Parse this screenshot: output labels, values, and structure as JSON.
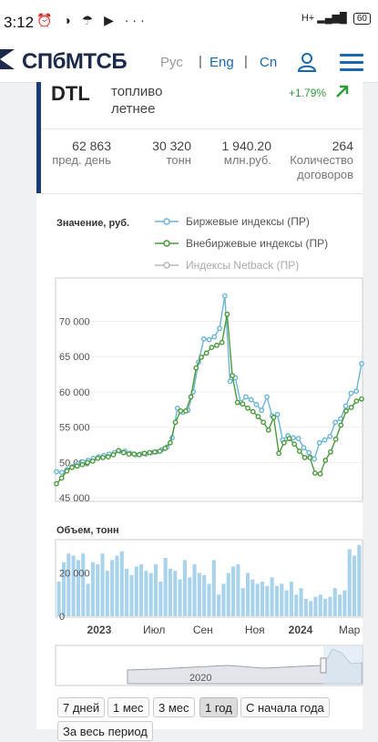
{
  "status": {
    "time": "3:12",
    "network": "H+",
    "battery": "60"
  },
  "header": {
    "logo": "СПбМТСБ",
    "langs": [
      "Рус",
      "Eng",
      "Cn"
    ],
    "sep": "|"
  },
  "instrument": {
    "ticker": "DTL",
    "product": "топливо летнее",
    "change": "+1.79%"
  },
  "stats": [
    {
      "value": "62 863",
      "label": "пред. день"
    },
    {
      "value": "30 320",
      "label": "тонн"
    },
    {
      "value": "1 940.20",
      "label": "млн.руб."
    },
    {
      "value": "264",
      "label": "Количество договоров"
    }
  ],
  "chart_data": {
    "type": "line",
    "title": "",
    "ylabel": "Значение, руб.",
    "ylim": [
      44500,
      76000
    ],
    "yticks": [
      "70 000",
      "65 000",
      "60 000",
      "55 000",
      "50 000",
      "45 000"
    ],
    "series": [
      {
        "name": "Биржевые индексы (ПР)",
        "color": "#6ab4d8",
        "values": [
          48700,
          48600,
          49000,
          49400,
          49800,
          50100,
          50300,
          50600,
          50800,
          51000,
          51200,
          51400,
          51600,
          51600,
          51300,
          51100,
          51200,
          51200,
          51400,
          51500,
          51800,
          52200,
          53500,
          57700,
          57100,
          57400,
          60000,
          64200,
          67500,
          67400,
          67800,
          69000,
          73600,
          61500,
          62000,
          58500,
          59300,
          58900,
          58200,
          57400,
          59300,
          56600,
          56800,
          53200,
          53800,
          53500,
          53400,
          52100,
          51400,
          50500,
          52800,
          53200,
          53700,
          55700,
          56200,
          58000,
          59800,
          60100,
          64000
        ]
      },
      {
        "name": "Внебиржевые индексы (ПР)",
        "color": "#4a9a3c",
        "values": [
          47000,
          47800,
          48800,
          49300,
          49500,
          49700,
          50000,
          50200,
          50600,
          50700,
          50800,
          51100,
          51700,
          51400,
          51200,
          51200,
          51100,
          51300,
          51400,
          51500,
          51600,
          52000,
          52800,
          55700,
          57300,
          57300,
          59300,
          63400,
          64900,
          65500,
          66300,
          66600,
          67000,
          71000,
          62300,
          58500,
          58300,
          57700,
          57200,
          56500,
          55700,
          54600,
          56400,
          51300,
          52800,
          53400,
          52600,
          51600,
          50700,
          50700,
          48500,
          48400,
          50300,
          51500,
          53300,
          55300,
          57300,
          57800,
          58700,
          59000
        ]
      },
      {
        "name": "Индексы Netback (ПР)",
        "color": "#b8b8b8",
        "values": []
      }
    ],
    "volume": {
      "label": "Объем, тонн",
      "yticks": [
        "20 000",
        "0"
      ],
      "ylim": [
        0,
        35000
      ],
      "values": [
        16000,
        25000,
        29000,
        28000,
        26000,
        29000,
        15000,
        25000,
        24000,
        29000,
        21000,
        26000,
        28000,
        30000,
        22000,
        19000,
        23000,
        24000,
        21000,
        20000,
        24000,
        16000,
        27000,
        22000,
        21000,
        17000,
        26000,
        18000,
        24000,
        20000,
        19000,
        15000,
        26000,
        10000,
        15000,
        20000,
        23000,
        24000,
        13000,
        20000,
        17000,
        15000,
        16000,
        14000,
        18000,
        14000,
        15000,
        12000,
        16000,
        10000,
        13000,
        8000,
        7000,
        9000,
        10000,
        8000,
        9000,
        13000,
        10000,
        12000,
        31000,
        28000,
        33000
      ]
    },
    "xticks": [
      "2023",
      "Июл",
      "Сен",
      "Ноя",
      "2024",
      "Мар"
    ],
    "navigator_label": "2020"
  },
  "ranges": [
    "7 дней",
    "1 мес",
    "3 мес",
    "1 год",
    "С начала года",
    "За весь период"
  ],
  "active_range": "1 год"
}
